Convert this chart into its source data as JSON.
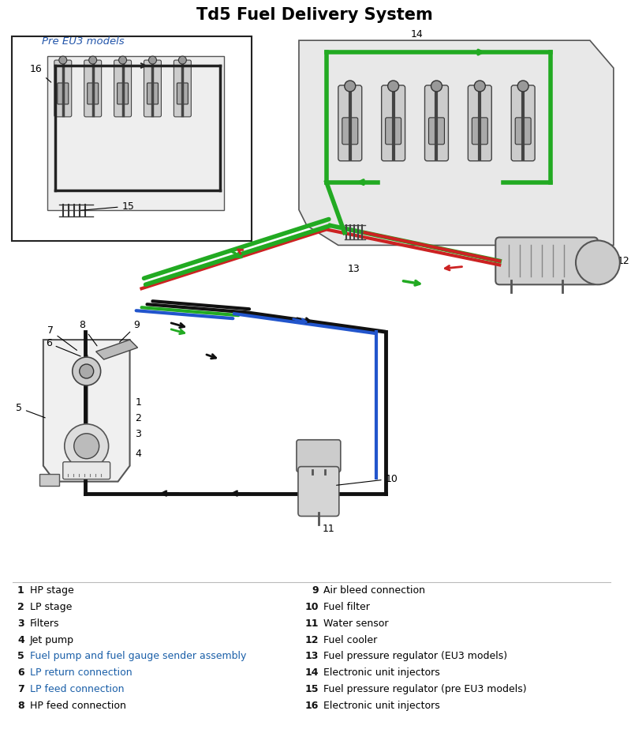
{
  "title": "Td5 Fuel Delivery System",
  "title_fontsize": 15,
  "title_fontweight": "bold",
  "title_color": "#000000",
  "bg_color": "#ffffff",
  "legend_items_left": [
    {
      "num": "1",
      "text": "HP stage",
      "color": "#000000"
    },
    {
      "num": "2",
      "text": "LP stage",
      "color": "#000000"
    },
    {
      "num": "3",
      "text": "Filters",
      "color": "#000000"
    },
    {
      "num": "4",
      "text": "Jet pump",
      "color": "#000000"
    },
    {
      "num": "5",
      "text": "Fuel pump and fuel gauge sender assembly",
      "color": "#1a5fa8"
    },
    {
      "num": "6",
      "text": "LP return connection",
      "color": "#1a5fa8"
    },
    {
      "num": "7",
      "text": "LP feed connection",
      "color": "#1a5fa8"
    },
    {
      "num": "8",
      "text": "HP feed connection",
      "color": "#000000"
    }
  ],
  "legend_items_right": [
    {
      "num": "9",
      "text": "Air bleed connection",
      "color": "#000000"
    },
    {
      "num": "10",
      "text": "Fuel filter",
      "color": "#000000"
    },
    {
      "num": "11",
      "text": "Water sensor",
      "color": "#000000"
    },
    {
      "num": "12",
      "text": "Fuel cooler",
      "color": "#000000"
    },
    {
      "num": "13",
      "text": "Fuel pressure regulator (EU3 models)",
      "color": "#000000"
    },
    {
      "num": "14",
      "text": "Electronic unit injectors",
      "color": "#000000"
    },
    {
      "num": "15",
      "text": "Fuel pressure regulator (pre EU3 models)",
      "color": "#000000"
    },
    {
      "num": "16",
      "text": "Electronic unit injectors",
      "color": "#000000"
    }
  ],
  "inset_label": "Pre EU3 models",
  "green_color": "#22aa22",
  "red_color": "#cc2222",
  "blue_color": "#2255cc",
  "black_color": "#111111",
  "label_fontsize": 9,
  "num_fontsize": 9
}
